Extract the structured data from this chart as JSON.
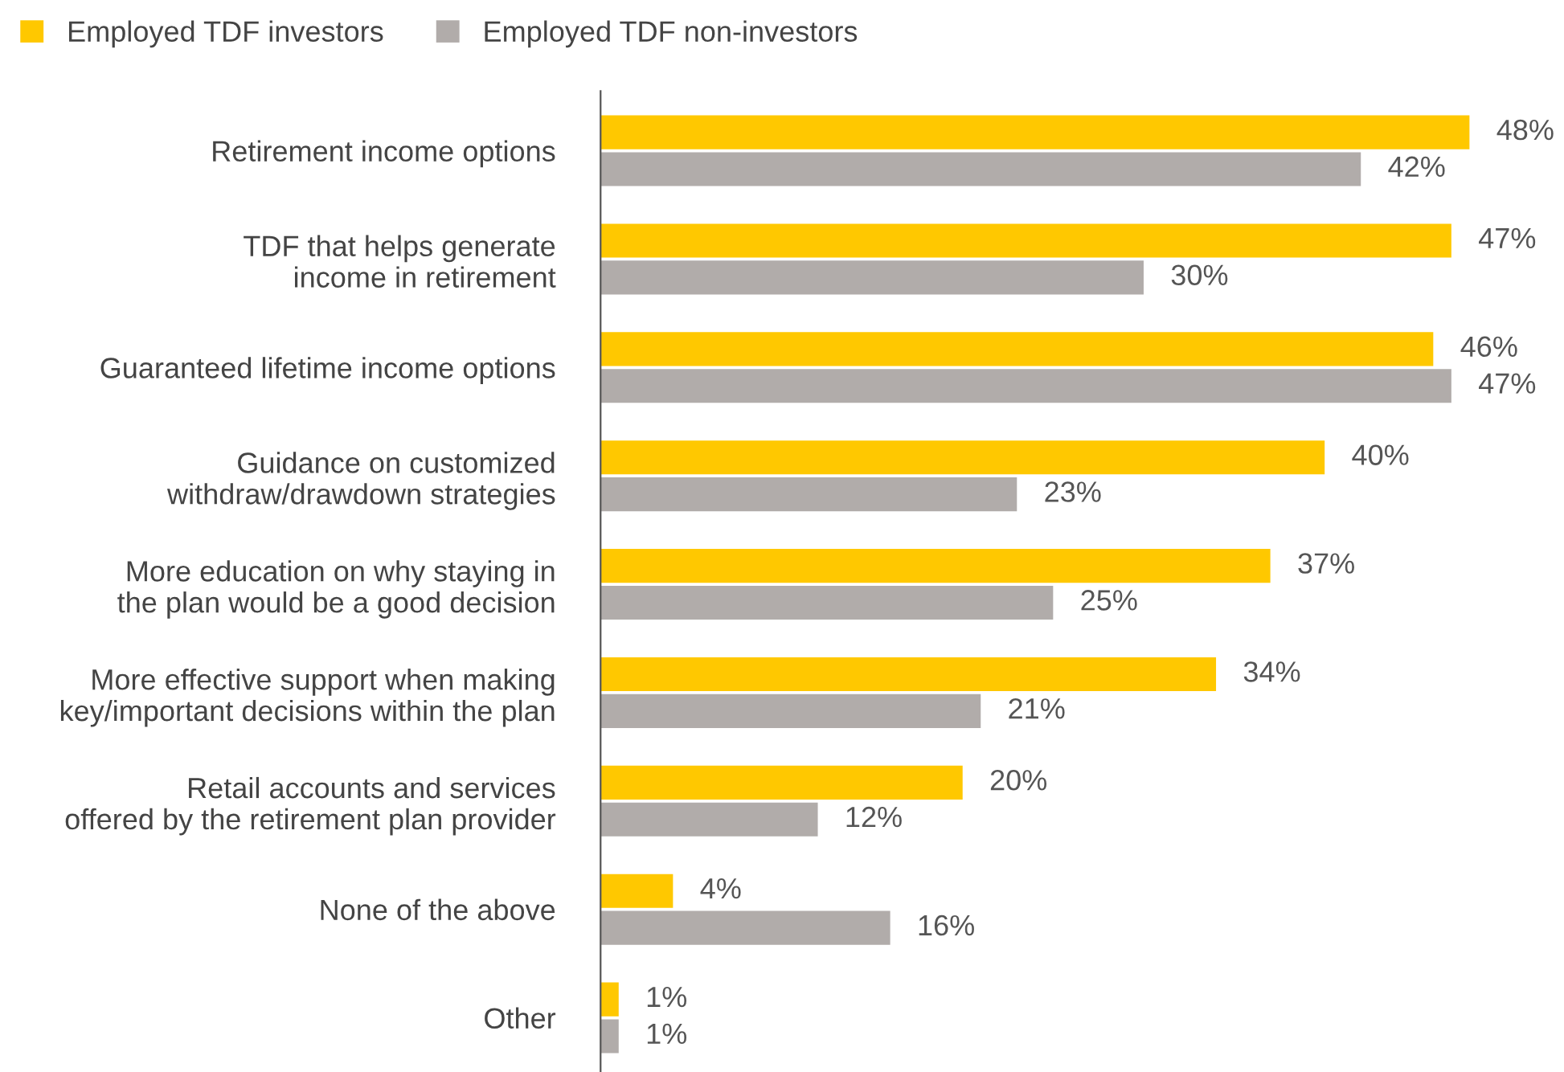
{
  "chart_data": {
    "type": "bar",
    "orientation": "horizontal",
    "legend": "top left",
    "grid": false,
    "categories": [
      "Retirement income options",
      "TDF that helps generate\nincome in retirement",
      "Guaranteed lifetime income options",
      "Guidance on customized\nwithdraw/drawdown strategies",
      "More education on why staying in\nthe plan would be a good decision",
      "More effective support when making\nkey/important decisions within the plan",
      "Retail accounts and services\noffered by the retirement plan provider",
      "None of the above",
      "Other"
    ],
    "series": [
      {
        "name": "Employed TDF investors",
        "color": "#ffc800",
        "values": [
          48,
          47,
          46,
          40,
          37,
          34,
          20,
          4,
          1
        ],
        "value_labels": [
          "48%",
          "47%",
          "46%",
          "40%",
          "37%",
          "34%",
          "20%",
          "4%",
          "1%"
        ]
      },
      {
        "name": "Employed TDF non-investors",
        "color": "#b1acaa",
        "values": [
          42,
          30,
          47,
          23,
          25,
          21,
          12,
          16,
          1
        ],
        "value_labels": [
          "42%",
          "30%",
          "47%",
          "23%",
          "25%",
          "21%",
          "12%",
          "16%",
          "1%"
        ]
      }
    ]
  }
}
